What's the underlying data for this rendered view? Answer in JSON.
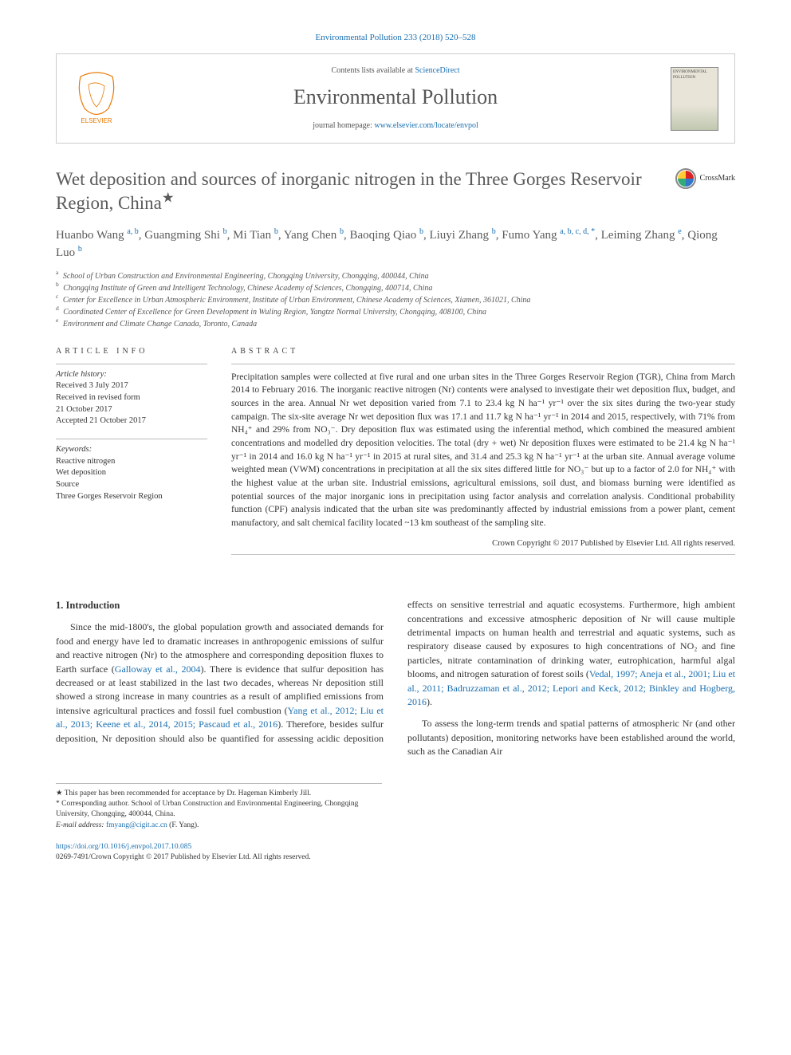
{
  "colors": {
    "link": "#1a6fb0",
    "text": "#333333",
    "heading": "#5a5a5a",
    "rule": "#bbbbbb"
  },
  "citation": "Environmental Pollution 233 (2018) 520–528",
  "header": {
    "contents_prefix": "Contents lists available at ",
    "contents_link": "ScienceDirect",
    "journal": "Environmental Pollution",
    "homepage_prefix": "journal homepage: ",
    "homepage_link": "www.elsevier.com/locate/envpol",
    "publisher_name": "ELSEVIER",
    "cover_label": "ENVIRONMENTAL POLLUTION"
  },
  "crossmark_label": "CrossMark",
  "title": "Wet deposition and sources of inorganic nitrogen in the Three Gorges Reservoir Region, China",
  "title_star": "★",
  "authors_html": "Huanbo Wang <sup>a, b</sup>, Guangming Shi <sup>b</sup>, Mi Tian <sup>b</sup>, Yang Chen <sup>b</sup>, Baoqing Qiao <sup>b</sup>, Liuyi Zhang <sup>b</sup>, Fumo Yang <sup>a, b, c, d, *</sup>, Leiming Zhang <sup>e</sup>, Qiong Luo <sup>b</sup>",
  "affiliations": [
    {
      "key": "a",
      "text": "School of Urban Construction and Environmental Engineering, Chongqing University, Chongqing, 400044, China"
    },
    {
      "key": "b",
      "text": "Chongqing Institute of Green and Intelligent Technology, Chinese Academy of Sciences, Chongqing, 400714, China"
    },
    {
      "key": "c",
      "text": "Center for Excellence in Urban Atmospheric Environment, Institute of Urban Environment, Chinese Academy of Sciences, Xiamen, 361021, China"
    },
    {
      "key": "d",
      "text": "Coordinated Center of Excellence for Green Development in Wuling Region, Yangtze Normal University, Chongqing, 408100, China"
    },
    {
      "key": "e",
      "text": "Environment and Climate Change Canada, Toronto, Canada"
    }
  ],
  "article_info": {
    "label": "ARTICLE INFO",
    "history_label": "Article history:",
    "history": [
      "Received 3 July 2017",
      "Received in revised form",
      "21 October 2017",
      "Accepted 21 October 2017"
    ],
    "keywords_label": "Keywords:",
    "keywords": [
      "Reactive nitrogen",
      "Wet deposition",
      "Source",
      "Three Gorges Reservoir Region"
    ]
  },
  "abstract": {
    "label": "ABSTRACT",
    "text": "Precipitation samples were collected at five rural and one urban sites in the Three Gorges Reservoir Region (TGR), China from March 2014 to February 2016. The inorganic reactive nitrogen (Nr) contents were analysed to investigate their wet deposition flux, budget, and sources in the area. Annual Nr wet deposition varied from 7.1 to 23.4 kg N ha⁻¹ yr⁻¹ over the six sites during the two-year study campaign. The six-site average Nr wet deposition flux was 17.1 and 11.7 kg N ha⁻¹ yr⁻¹ in 2014 and 2015, respectively, with 71% from NH₄⁺ and 29% from NO₃⁻. Dry deposition flux was estimated using the inferential method, which combined the measured ambient concentrations and modelled dry deposition velocities. The total (dry + wet) Nr deposition fluxes were estimated to be 21.4 kg N ha⁻¹ yr⁻¹ in 2014 and 16.0 kg N ha⁻¹ yr⁻¹ in 2015 at rural sites, and 31.4 and 25.3 kg N ha⁻¹ yr⁻¹ at the urban site. Annual average volume weighted mean (VWM) concentrations in precipitation at all the six sites differed little for NO₃⁻ but up to a factor of 2.0 for NH₄⁺ with the highest value at the urban site. Industrial emissions, agricultural emissions, soil dust, and biomass burning were identified as potential sources of the major inorganic ions in precipitation using factor analysis and correlation analysis. Conditional probability function (CPF) analysis indicated that the urban site was predominantly affected by industrial emissions from a power plant, cement manufactory, and salt chemical facility located ~13 km southeast of the sampling site.",
    "copyright": "Crown Copyright © 2017 Published by Elsevier Ltd. All rights reserved."
  },
  "body": {
    "heading": "1. Introduction",
    "p1_pre": "Since the mid-1800's, the global population growth and associated demands for food and energy have led to dramatic increases in anthropogenic emissions of sulfur and reactive nitrogen (Nr) to the atmosphere and corresponding deposition fluxes to Earth surface (",
    "p1_ref1": "Galloway et al., 2004",
    "p1_mid": "). There is evidence that sulfur deposition has decreased or at least stabilized in the last two decades, whereas Nr deposition still showed a strong increase in many countries as a result of amplified emissions from intensive agricultural practices and fossil fuel combustion (",
    "p1_ref2": "Yang et al., 2012; Liu et al., 2013; Keene et al., 2014, 2015; Pascaud et al., 2016",
    "p1_post": "). Therefore, besides sulfur deposition, Nr deposition should also be quantified for assessing acidic deposition effects on sensitive terrestrial and aquatic ecosystems. Furthermore, high ambient concentrations and excessive atmospheric deposition of Nr will cause multiple detrimental impacts on human health and terrestrial and aquatic systems, such as respiratory disease caused by exposures to high concentrations of NO₂ and fine particles, nitrate contamination of drinking water, eutrophication, harmful algal blooms, and nitrogen saturation of forest soils (",
    "p1_ref3": "Vedal, 1997; Aneja et al., 2001; Liu et al., 2011; Badruzzaman et al., 2012; Lepori and Keck, 2012; Binkley and Hogberg, 2016",
    "p1_end": ").",
    "p2": "To assess the long-term trends and spatial patterns of atmospheric Nr (and other pollutants) deposition, monitoring networks have been established around the world, such as the Canadian Air"
  },
  "footnotes": {
    "star": "★ This paper has been recommended for acceptance by Dr. Hageman Kimberly Jill.",
    "corr": "* Corresponding author. School of Urban Construction and Environmental Engineering, Chongqing University, Chongqing, 400044, China.",
    "email_label": "E-mail address: ",
    "email": "fmyang@cigit.ac.cn",
    "email_suffix": " (F. Yang)."
  },
  "footer": {
    "doi": "https://doi.org/10.1016/j.envpol.2017.10.085",
    "issn_line": "0269-7491/Crown Copyright © 2017 Published by Elsevier Ltd. All rights reserved."
  }
}
